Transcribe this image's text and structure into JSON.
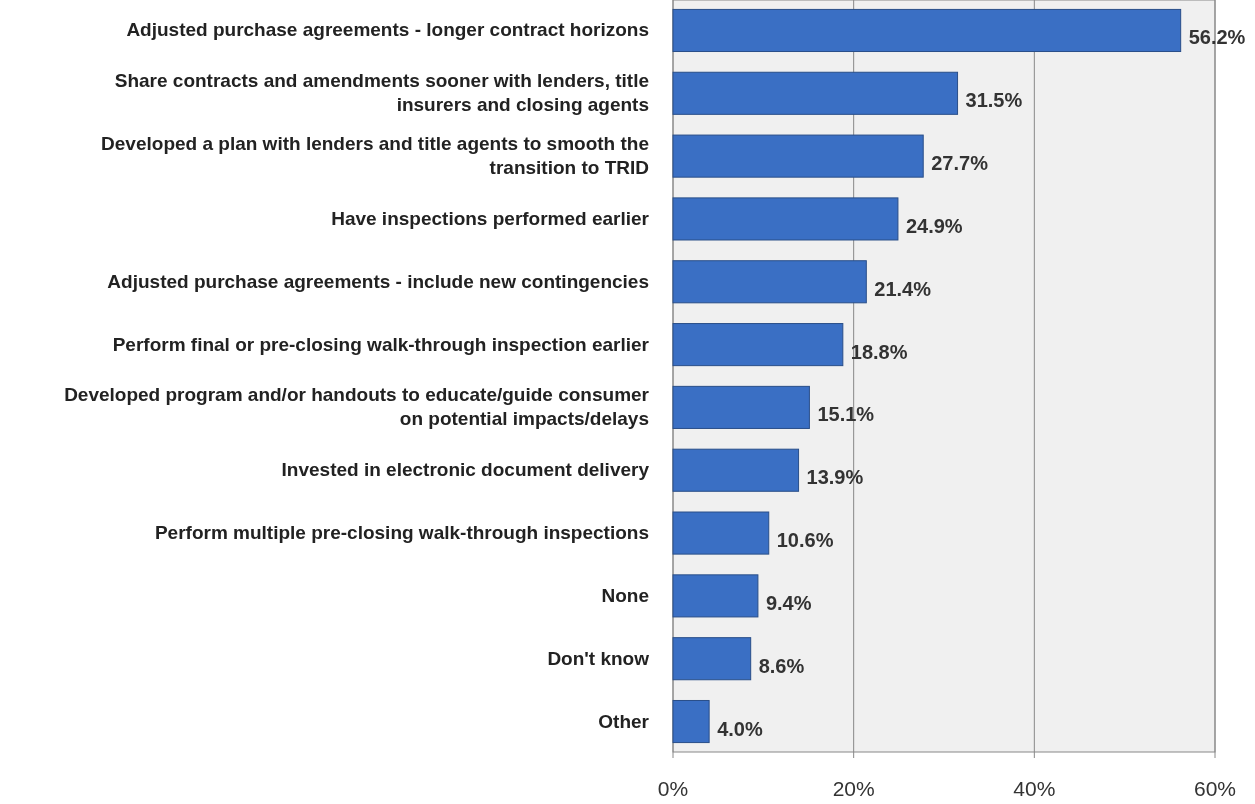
{
  "chart_data": {
    "type": "bar",
    "orientation": "horizontal",
    "categories": [
      "Adjusted purchase agreements - longer contract horizons",
      "Share contracts and amendments sooner with lenders, title insurers and closing agents",
      "Developed a plan with lenders and title agents to smooth the transition to TRID",
      "Have inspections performed earlier",
      "Adjusted purchase agreements - include new contingencies",
      "Perform final or pre-closing walk-through inspection earlier",
      "Developed program and/or handouts to educate/guide consumer on potential impacts/delays",
      "Invested in electronic document delivery",
      "Perform multiple pre-closing walk-through inspections",
      "None",
      "Don't know",
      "Other"
    ],
    "values": [
      56.2,
      31.5,
      27.7,
      24.9,
      21.4,
      18.8,
      15.1,
      13.9,
      10.6,
      9.4,
      8.6,
      4.0
    ],
    "value_labels": [
      "56.2%",
      "31.5%",
      "27.7%",
      "24.9%",
      "21.4%",
      "18.8%",
      "15.1%",
      "13.9%",
      "10.6%",
      "9.4%",
      "8.6%",
      "4.0%"
    ],
    "color": "#3a6fc4",
    "xlim": [
      0,
      60
    ],
    "xticks": [
      {
        "value": 0,
        "label": "0%"
      },
      {
        "value": 20,
        "label": "20%"
      },
      {
        "value": 40,
        "label": "40%"
      },
      {
        "value": 60,
        "label": "60%"
      }
    ],
    "grid": "x"
  }
}
